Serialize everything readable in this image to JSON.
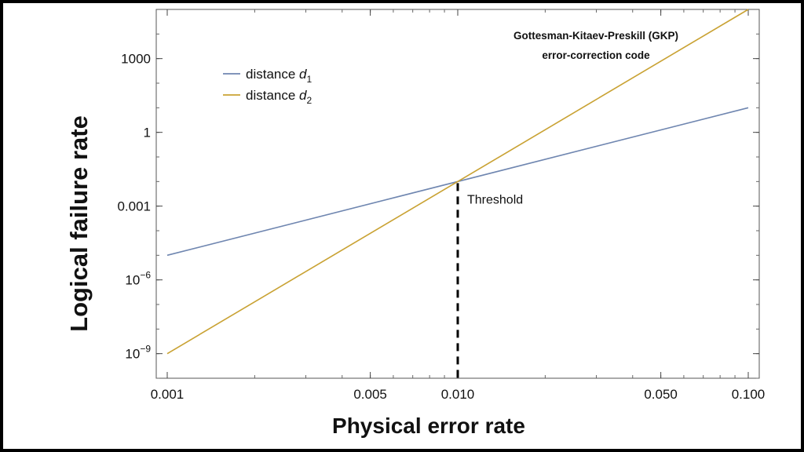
{
  "chart_data": {
    "type": "line",
    "title": "",
    "xlabel": "Physical error rate",
    "ylabel": "Logical failure rate",
    "xscale": "log",
    "yscale": "log",
    "xlim": [
      0.001,
      0.1
    ],
    "ylim": [
      1e-10,
      100000
    ],
    "x_ticks": [
      {
        "value": 0.001,
        "label": "0.001"
      },
      {
        "value": 0.005,
        "label": "0.005"
      },
      {
        "value": 0.01,
        "label": "0.010"
      },
      {
        "value": 0.05,
        "label": "0.050"
      },
      {
        "value": 0.1,
        "label": "0.100"
      }
    ],
    "y_ticks": [
      {
        "value": 1e-09,
        "base": "10",
        "exp": "−9"
      },
      {
        "value": 1e-06,
        "base": "10",
        "exp": "−6"
      },
      {
        "value": 0.001,
        "label": "0.001"
      },
      {
        "value": 1,
        "label": "1"
      },
      {
        "value": 1000,
        "label": "1000"
      }
    ],
    "series": [
      {
        "name": "distance d1",
        "label_main": "distance ",
        "label_var": "d",
        "label_sub": "1",
        "color": "#6f86b0",
        "x": [
          0.001,
          0.1
        ],
        "y": [
          1e-05,
          10
        ]
      },
      {
        "name": "distance d2",
        "label_main": "distance ",
        "label_var": "d",
        "label_sub": "2",
        "color": "#c9a233",
        "x": [
          0.001,
          0.1
        ],
        "y": [
          1e-09,
          100000
        ]
      }
    ],
    "annotations": {
      "threshold_label": "Threshold",
      "threshold_x": 0.01,
      "threshold_y": 0.01,
      "code_title_line1": "Gottesman-Kitaev-Preskill (GKP)",
      "code_title_line2": "error-correction code"
    },
    "legend_position": "top-left",
    "grid": false
  }
}
